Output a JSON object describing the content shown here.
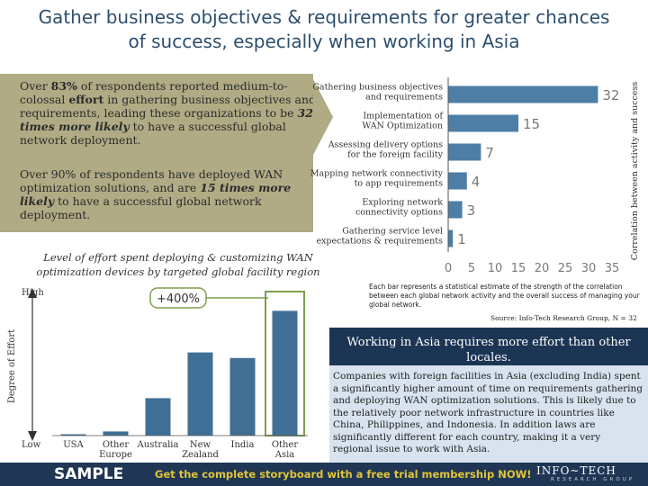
{
  "title_lines": [
    "Gather business objectives & requirements for greater chances",
    "of success, especially when working in Asia"
  ],
  "callout": {
    "p1": {
      "t1": "Over ",
      "b1": "83%",
      "t2": " of respondents reported medium-to-colossal ",
      "b2": "effort",
      "t3": " in gathering business objectives and requirements, leading these organizations to be ",
      "b3": "32 times more likely",
      "t4": " to have a successful global network deployment."
    },
    "p2": {
      "t1": "Over 90% of respondents have deployed WAN optimization solutions, and are ",
      "b1": "15 times more likely",
      "t2": " to have a successful global network deployment."
    }
  },
  "colors": {
    "navy": "#1f3654",
    "bar": "#4d7fa6",
    "bar_dark": "#3f6f95",
    "callout": "#b0ab84",
    "highlight": "#7f9f4f",
    "axis_text": "#7a7a7a"
  },
  "chart_data": [
    {
      "type": "bar",
      "orientation": "horizontal",
      "categories": [
        [
          "Gathering business objectives",
          "and requirements"
        ],
        [
          "Implementation of",
          "WAN Optimization"
        ],
        [
          "Assessing delivery options",
          "for the foreign facility"
        ],
        [
          "Mapping network connectivity",
          "to app requirements"
        ],
        [
          "Exploring network",
          "connectivity options"
        ],
        [
          "Gathering service level",
          "expectations & requirements"
        ]
      ],
      "values": [
        32,
        15,
        7,
        4,
        3,
        1
      ],
      "xlim": [
        0,
        35
      ],
      "xticks": [
        0,
        5,
        10,
        15,
        20,
        25,
        30,
        35
      ],
      "ylabel": "Correlation between activity and success",
      "note": "Each bar represents a statistical estimate of the strength of the correlation between each global network activity and the overall success of managing your global network.",
      "source": "Source: Info-Tech Research Group, N = 32"
    },
    {
      "type": "bar",
      "title": [
        "Level of effort spent deploying & customizing WAN",
        "optimization devices by targeted global facility region"
      ],
      "categories": [
        [
          "USA"
        ],
        [
          "Other",
          "Europe"
        ],
        [
          "Australia"
        ],
        [
          "New",
          "Zealand"
        ],
        [
          "India"
        ],
        [
          "Other",
          "Asia"
        ]
      ],
      "values": [
        0,
        3,
        27,
        60,
        56,
        90
      ],
      "ylim": [
        0,
        100
      ],
      "ylabel": "Degree of Effort",
      "y_high_label": "High",
      "y_low_label": "Low",
      "highlight_category": "Other Asia",
      "annotation": "+400%"
    }
  ],
  "asia": {
    "heading": "Working in Asia requires more effort than other locales.",
    "body": "Companies with foreign facilities in Asia (excluding India) spent a significantly higher amount of time on requirements gathering and deploying WAN optimization solutions. This is likely due to the relatively poor network infrastructure in countries like China, Philippines, and Indonesia. In addition laws are significantly different for each country, making it a very regional issue to work with Asia."
  },
  "footer": {
    "sample": "SAMPLE",
    "cta": "Get the complete storyboard with a free trial membership NOW!",
    "logo": "INFO~TECH",
    "logo_sub": "RESEARCH GROUP"
  }
}
